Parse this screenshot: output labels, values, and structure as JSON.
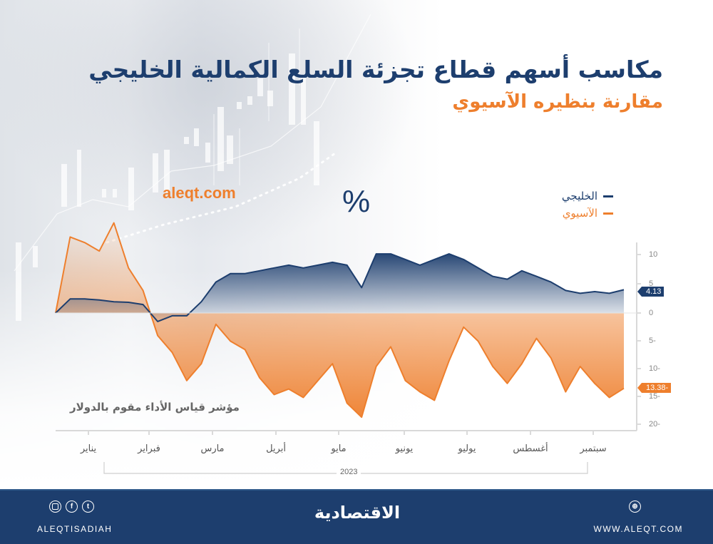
{
  "header": {
    "title": "مكاسب أسهم قطاع تجزئة السلع الكمالية الخليجي",
    "subtitle": "مقارنة بنظيره الآسيوي",
    "site_watermark": "aleqt.com",
    "unit": "%"
  },
  "legend": [
    {
      "label": "الخليجي",
      "color": "#1d3e6e"
    },
    {
      "label": "الآسيوي",
      "color": "#ee7f2d"
    }
  ],
  "note": "مؤشر قياس الأداء مقوم بالدولار",
  "axis": {
    "y_ticks": [
      "10",
      "5",
      "0",
      "5-",
      "10-",
      "15-",
      "20-"
    ],
    "months": [
      "يناير",
      "فبراير",
      "مارس",
      "أبريل",
      "مايو",
      "يونيو",
      "يوليو",
      "أغسطس",
      "سبتمبر"
    ],
    "year": "2023"
  },
  "badges": {
    "gulf_last": "4.13",
    "asia_last": "13.38-"
  },
  "footer": {
    "handle": "ALEQTISADIAH",
    "logo": "الاقتصادية",
    "website": "WWW.ALEQT.COM",
    "social_icons": [
      "instagram-icon",
      "facebook-icon",
      "twitter-icon"
    ],
    "web_icon": "globe-icon"
  },
  "colors": {
    "navy": "#1d3e6e",
    "orange": "#ee7f2d",
    "footer_bg": "#1d3e6e"
  },
  "chart_data": {
    "type": "area",
    "title": "مكاسب أسهم قطاع تجزئة السلع الكمالية الخليجي",
    "subtitle": "مقارنة بنظيره الآسيوي",
    "xlabel": "2023",
    "ylabel": "%",
    "ylim": [
      -20,
      12
    ],
    "y_ticks": [
      10,
      5,
      0,
      -5,
      -10,
      -15,
      -20
    ],
    "x_tick_labels": [
      "يناير",
      "فبراير",
      "مارس",
      "أبريل",
      "مايو",
      "يونيو",
      "يوليو",
      "أغسطس",
      "سبتمبر"
    ],
    "legend_position": "top-right",
    "grid": false,
    "x": [
      "Jan-01",
      "Jan-08",
      "Jan-15",
      "Jan-22",
      "Jan-29",
      "Feb-05",
      "Feb-12",
      "Feb-19",
      "Feb-26",
      "Mar-05",
      "Mar-12",
      "Mar-19",
      "Mar-26",
      "Apr-02",
      "Apr-09",
      "Apr-16",
      "Apr-23",
      "Apr-30",
      "May-07",
      "May-14",
      "May-21",
      "May-28",
      "Jun-04",
      "Jun-11",
      "Jun-18",
      "Jun-25",
      "Jul-02",
      "Jul-09",
      "Jul-16",
      "Jul-23",
      "Jul-30",
      "Aug-06",
      "Aug-13",
      "Aug-20",
      "Aug-27",
      "Sep-03",
      "Sep-10",
      "Sep-17",
      "Sep-24",
      "Sep-30"
    ],
    "series": [
      {
        "name": "الخليجي",
        "color": "#1d3e6e",
        "values": [
          0,
          2.5,
          2.5,
          2.3,
          2.0,
          1.9,
          1.5,
          -1.5,
          -0.5,
          -0.5,
          2.0,
          5.5,
          7.0,
          7.0,
          7.5,
          8.0,
          8.5,
          8.0,
          8.5,
          9.0,
          8.5,
          4.5,
          10.5,
          10.5,
          9.5,
          8.5,
          9.5,
          10.5,
          9.5,
          8.0,
          6.5,
          6.0,
          7.5,
          6.5,
          5.5,
          4.0,
          3.5,
          3.8,
          3.5,
          4.13
        ]
      },
      {
        "name": "الآسيوي",
        "color": "#ee7f2d",
        "values": [
          0,
          13.5,
          12.5,
          11.0,
          16.0,
          8.0,
          4.0,
          -4.0,
          -7.0,
          -12.0,
          -9.0,
          -2.0,
          -5.0,
          -6.5,
          -11.5,
          -14.5,
          -13.5,
          -15.0,
          -12.0,
          -9.0,
          -16.0,
          -18.5,
          -9.5,
          -6.0,
          -12.0,
          -14.0,
          -15.5,
          -8.5,
          -2.5,
          -5.0,
          -9.5,
          -12.5,
          -9.0,
          -4.5,
          -8.0,
          -14.0,
          -9.5,
          -12.5,
          -15.0,
          -13.38
        ]
      }
    ]
  }
}
